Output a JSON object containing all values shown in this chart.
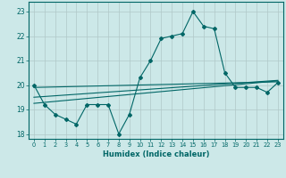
{
  "xlabel": "Humidex (Indice chaleur)",
  "bg_color": "#cce8e8",
  "grid_color": "#b0c8c8",
  "line_color": "#006666",
  "x_data": [
    0,
    1,
    2,
    3,
    4,
    5,
    6,
    7,
    8,
    9,
    10,
    11,
    12,
    13,
    14,
    15,
    16,
    17,
    18,
    19,
    20,
    21,
    22,
    23
  ],
  "y_main": [
    20.0,
    19.2,
    18.8,
    18.6,
    18.4,
    19.2,
    19.2,
    19.2,
    18.0,
    18.8,
    20.3,
    21.0,
    21.9,
    22.0,
    22.1,
    23.0,
    22.4,
    22.3,
    20.5,
    19.9,
    19.9,
    19.9,
    19.7,
    20.1
  ],
  "y_line1": [
    19.9,
    19.91,
    19.92,
    19.93,
    19.94,
    19.95,
    19.96,
    19.97,
    19.98,
    19.99,
    20.0,
    20.01,
    20.02,
    20.03,
    20.04,
    20.05,
    20.06,
    20.07,
    20.08,
    20.09,
    20.1,
    20.11,
    20.12,
    20.13
  ],
  "y_line2": [
    19.5,
    19.53,
    19.56,
    19.59,
    19.62,
    19.65,
    19.68,
    19.71,
    19.74,
    19.77,
    19.8,
    19.83,
    19.86,
    19.89,
    19.92,
    19.95,
    19.98,
    20.01,
    20.04,
    20.07,
    20.1,
    20.13,
    20.16,
    20.19
  ],
  "y_line3": [
    19.25,
    19.29,
    19.33,
    19.37,
    19.41,
    19.45,
    19.49,
    19.53,
    19.57,
    19.61,
    19.65,
    19.69,
    19.73,
    19.77,
    19.81,
    19.85,
    19.89,
    19.93,
    19.97,
    20.01,
    20.05,
    20.09,
    20.13,
    20.17
  ],
  "ylim": [
    17.8,
    23.4
  ],
  "yticks": [
    18,
    19,
    20,
    21,
    22,
    23
  ],
  "xticks": [
    0,
    1,
    2,
    3,
    4,
    5,
    6,
    7,
    8,
    9,
    10,
    11,
    12,
    13,
    14,
    15,
    16,
    17,
    18,
    19,
    20,
    21,
    22,
    23
  ]
}
